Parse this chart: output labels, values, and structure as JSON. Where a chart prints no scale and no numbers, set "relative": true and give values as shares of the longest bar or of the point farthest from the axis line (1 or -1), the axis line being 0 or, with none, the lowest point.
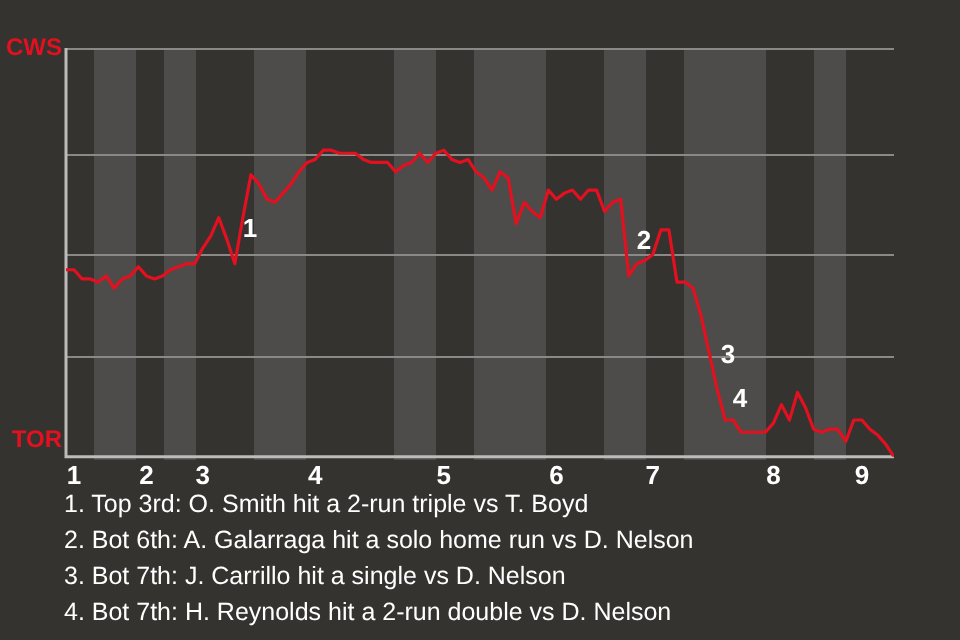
{
  "chart_data": {
    "type": "line",
    "relative": true,
    "categories": [
      null,
      "1",
      null,
      null,
      null,
      null,
      null,
      null,
      null,
      null,
      "2",
      null,
      null,
      null,
      null,
      null,
      null,
      "3",
      null,
      null,
      null,
      null,
      null,
      null,
      null,
      null,
      null,
      null,
      null,
      null,
      null,
      "4",
      null,
      null,
      null,
      null,
      null,
      null,
      null,
      null,
      null,
      null,
      null,
      null,
      null,
      null,
      null,
      "5",
      null,
      null,
      null,
      null,
      null,
      null,
      null,
      null,
      null,
      null,
      null,
      null,
      null,
      "6",
      null,
      null,
      null,
      null,
      null,
      null,
      null,
      null,
      null,
      null,
      null,
      "7",
      null,
      null,
      null,
      null,
      null,
      null,
      null,
      null,
      null,
      null,
      null,
      null,
      null,
      null,
      "8",
      null,
      null,
      null,
      null,
      null,
      null,
      null,
      null,
      null,
      null,
      "9",
      null,
      null,
      null,
      null
    ],
    "series": [
      {
        "color": "#e3101f",
        "values": [
          0.61,
          0.61,
          0.58,
          0.58,
          0.57,
          0.59,
          0.55,
          0.58,
          0.59,
          0.62,
          0.59,
          0.58,
          0.59,
          0.61,
          0.62,
          0.63,
          0.63,
          0.68,
          0.72,
          0.78,
          0.71,
          0.63,
          0.78,
          0.92,
          0.89,
          0.84,
          0.83,
          0.86,
          0.89,
          0.93,
          0.96,
          0.97,
          1,
          1,
          0.99,
          0.99,
          0.99,
          0.97,
          0.96,
          0.96,
          0.96,
          0.93,
          0.95,
          0.96,
          0.99,
          0.96,
          0.99,
          1,
          0.97,
          0.96,
          0.97,
          0.93,
          0.91,
          0.87,
          0.93,
          0.91,
          0.76,
          0.83,
          0.8,
          0.78,
          0.87,
          0.84,
          0.86,
          0.87,
          0.84,
          0.87,
          0.87,
          0.8,
          0.83,
          0.84,
          0.59,
          0.63,
          0.64,
          0.66,
          0.74,
          0.74,
          0.57,
          0.57,
          0.55,
          0.46,
          0.34,
          0.22,
          0.12,
          0.12,
          0.08,
          0.08,
          0.08,
          0.08,
          0.11,
          0.17,
          0.12,
          0.21,
          0.16,
          0.09,
          0.08,
          0.09,
          0.09,
          0.05,
          0.12,
          0.12,
          0.09,
          0.07,
          0.04,
          0
        ]
      }
    ],
    "marker": "none",
    "line_style": "solid",
    "legend": false,
    "ref_lines": [
      {
        "axis": "y",
        "value": 0.33,
        "color": "#8a8987"
      },
      {
        "axis": "y",
        "value": 0.66,
        "color": "#8a8987"
      },
      {
        "axis": "y",
        "value": 0.99,
        "color": "#8a8987"
      }
    ],
    "annotations": [
      {
        "text": "CWS"
      },
      {
        "text": "TOR"
      },
      {
        "text": "1"
      },
      {
        "text": "2"
      },
      {
        "text": "3"
      },
      {
        "text": "4"
      },
      "1. Top 3rd: O. Smith hit a 2-run triple vs T. Boyd",
      "2. Bot 6th: A. Galarraga hit a solo home run vs D. Nelson",
      "3. Bot 7th: J. Carrillo hit a single vs D. Nelson",
      "4. Bot 7th: H. Reynolds hit a 2-run double vs D. Nelson"
    ]
  }
}
